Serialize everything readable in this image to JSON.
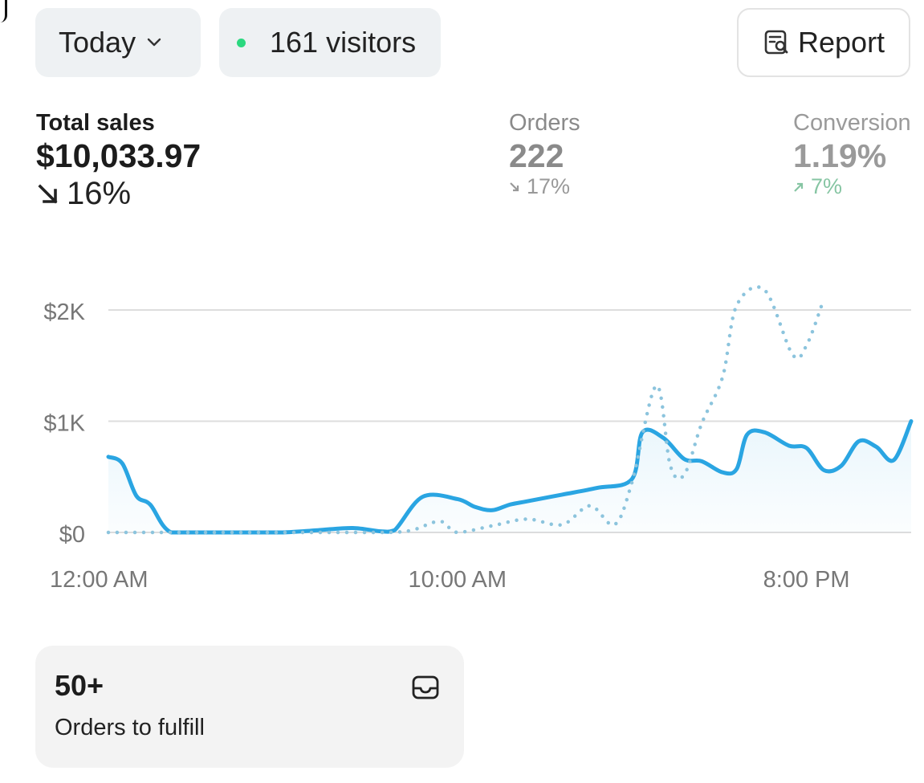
{
  "header": {
    "date_range_label": "Today",
    "visitors_label": "161 visitors",
    "report_label": "Report"
  },
  "metrics": {
    "total_sales": {
      "label": "Total sales",
      "value": "$10,033.97",
      "delta": "16%",
      "direction": "down"
    },
    "orders": {
      "label": "Orders",
      "value": "222",
      "delta": "17%",
      "direction": "down"
    },
    "conversion": {
      "label": "Conversion",
      "value": "1.19%",
      "delta": "7%",
      "direction": "up"
    }
  },
  "colors": {
    "accent": "#2aa5e2",
    "comparison": "#8cc4dd",
    "live_dot": "#2bd87f",
    "up": "#86c5a3"
  },
  "icons": {
    "date_dropdown": "chevron-down-icon",
    "report": "report-search-icon",
    "sales_delta": "arrow-down-right-icon",
    "orders_delta": "arrow-down-right-icon",
    "conversion_delta": "arrow-up-right-icon",
    "fulfill": "inbox-icon"
  },
  "chart_data": {
    "type": "line",
    "y_ticks": [
      {
        "value": 0,
        "label": "$0"
      },
      {
        "value": 1000,
        "label": "$1K"
      },
      {
        "value": 2000,
        "label": "$2K"
      }
    ],
    "x_ticks": [
      {
        "hour": 0,
        "label": "12:00 AM"
      },
      {
        "hour": 10,
        "label": "10:00 AM"
      },
      {
        "hour": 20,
        "label": "8:00 PM"
      }
    ],
    "ylim": [
      0,
      2000
    ],
    "xlim": [
      0,
      23
    ],
    "grid": true,
    "series": [
      {
        "style": "solid",
        "points": [
          [
            0,
            680
          ],
          [
            0.4,
            620
          ],
          [
            0.8,
            330
          ],
          [
            1.2,
            250
          ],
          [
            1.8,
            0
          ],
          [
            3,
            0
          ],
          [
            4,
            0
          ],
          [
            5,
            0
          ],
          [
            6,
            20
          ],
          [
            7,
            40
          ],
          [
            7.8,
            10
          ],
          [
            8.2,
            20
          ],
          [
            9,
            320
          ],
          [
            10,
            300
          ],
          [
            10.5,
            230
          ],
          [
            11,
            200
          ],
          [
            11.5,
            250
          ],
          [
            12,
            280
          ],
          [
            13,
            340
          ],
          [
            14,
            400
          ],
          [
            15,
            480
          ],
          [
            15.3,
            900
          ],
          [
            15.9,
            850
          ],
          [
            16.5,
            660
          ],
          [
            17,
            640
          ],
          [
            17.6,
            540
          ],
          [
            18,
            570
          ],
          [
            18.3,
            880
          ],
          [
            18.8,
            900
          ],
          [
            19.5,
            780
          ],
          [
            20,
            760
          ],
          [
            20.5,
            560
          ],
          [
            21,
            600
          ],
          [
            21.5,
            820
          ],
          [
            22,
            770
          ],
          [
            22.5,
            650
          ],
          [
            23,
            1000
          ]
        ]
      },
      {
        "style": "dotted",
        "points": [
          [
            0,
            0
          ],
          [
            1,
            0
          ],
          [
            2,
            0
          ],
          [
            3,
            0
          ],
          [
            4,
            0
          ],
          [
            5,
            0
          ],
          [
            6,
            0
          ],
          [
            7,
            0
          ],
          [
            8,
            0
          ],
          [
            8.7,
            20
          ],
          [
            9.5,
            100
          ],
          [
            10,
            0
          ],
          [
            11,
            60
          ],
          [
            12,
            120
          ],
          [
            13,
            70
          ],
          [
            13.8,
            240
          ],
          [
            14.5,
            70
          ],
          [
            15,
            450
          ],
          [
            15.7,
            1320
          ],
          [
            16.1,
            600
          ],
          [
            16.5,
            520
          ],
          [
            17,
            980
          ],
          [
            17.6,
            1400
          ],
          [
            18,
            2040
          ],
          [
            18.8,
            2180
          ],
          [
            19.6,
            1600
          ],
          [
            20,
            1680
          ],
          [
            20.5,
            2100
          ]
        ]
      }
    ]
  },
  "fulfill_card": {
    "count": "50+",
    "label": "Orders to fulfill"
  }
}
